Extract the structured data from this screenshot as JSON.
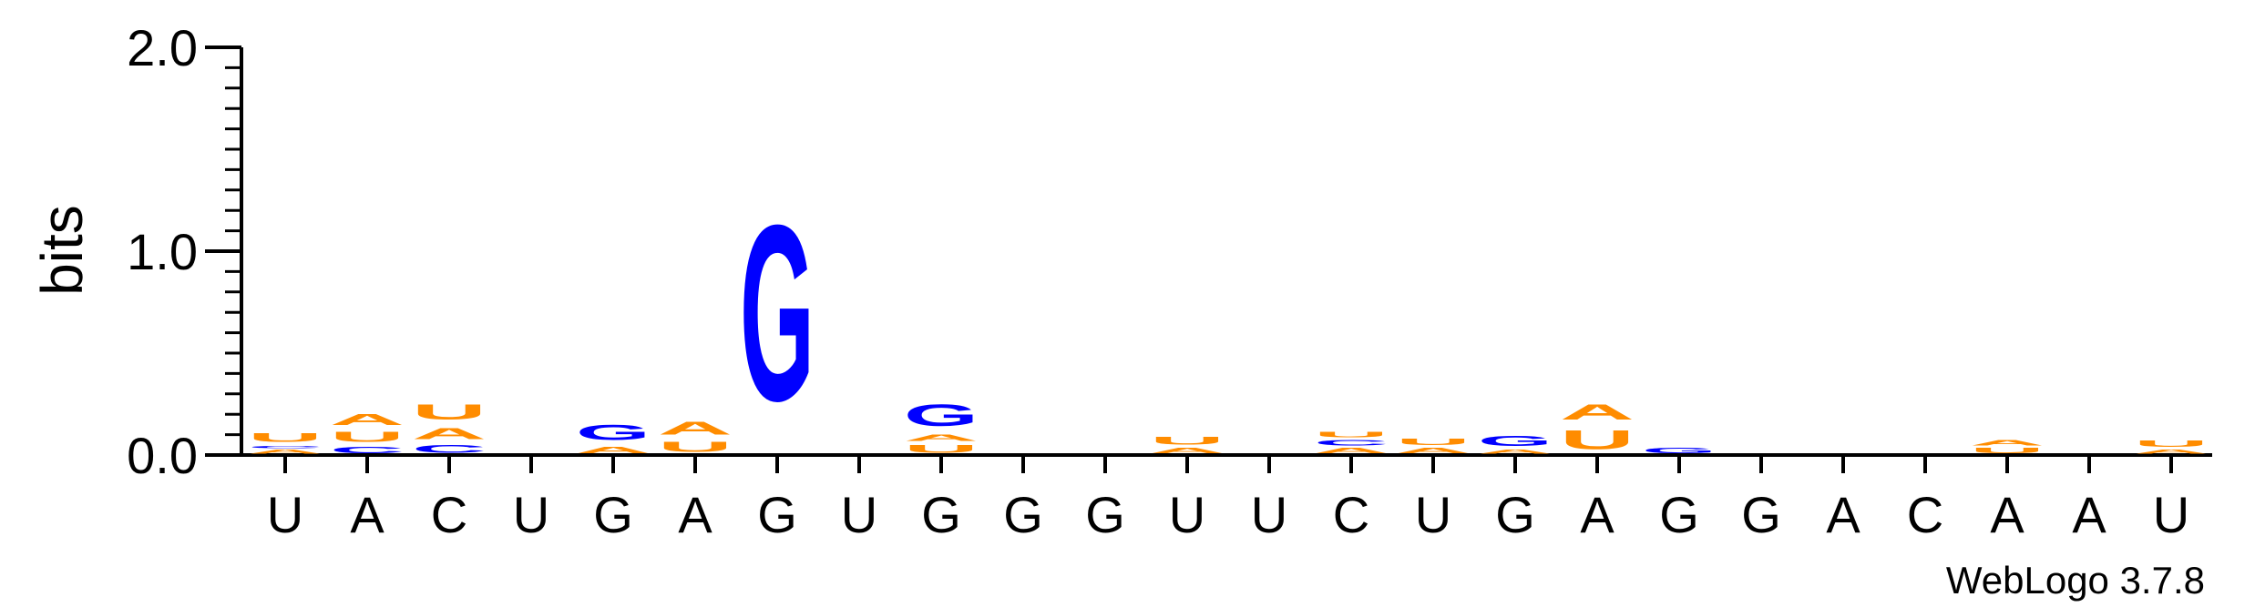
{
  "chart_data": {
    "type": "sequence-logo",
    "ylabel": "bits",
    "ylim": [
      0,
      2.0
    ],
    "yticks": [
      "0.0",
      "1.0",
      "2.0"
    ],
    "credit": "WebLogo 3.7.8",
    "colors": {
      "A": "#ff8c00",
      "U": "#ff8c00",
      "G": "#0000ff",
      "C": "#0000ff"
    },
    "positions": [
      {
        "label": "U",
        "stack": [
          {
            "base": "A",
            "bits": 0.03
          },
          {
            "base": "C",
            "bits": 0.02
          },
          {
            "base": "U",
            "bits": 0.07
          }
        ]
      },
      {
        "label": "A",
        "stack": [
          {
            "base": "C",
            "bits": 0.05
          },
          {
            "base": "U",
            "bits": 0.08
          },
          {
            "base": "A",
            "bits": 0.09
          }
        ]
      },
      {
        "label": "C",
        "stack": [
          {
            "base": "C",
            "bits": 0.06
          },
          {
            "base": "A",
            "bits": 0.09
          },
          {
            "base": "U",
            "bits": 0.12
          }
        ]
      },
      {
        "label": "U",
        "stack": []
      },
      {
        "label": "G",
        "stack": [
          {
            "base": "A",
            "bits": 0.05
          },
          {
            "base": "G",
            "bits": 0.12
          }
        ]
      },
      {
        "label": "A",
        "stack": [
          {
            "base": "U",
            "bits": 0.08
          },
          {
            "base": "A",
            "bits": 0.1
          }
        ]
      },
      {
        "label": "G",
        "stack": [
          {
            "base": "G",
            "bits": 1.38
          }
        ]
      },
      {
        "label": "U",
        "stack": []
      },
      {
        "label": "G",
        "stack": [
          {
            "base": "U",
            "bits": 0.06
          },
          {
            "base": "A",
            "bits": 0.05
          },
          {
            "base": "G",
            "bits": 0.17
          }
        ]
      },
      {
        "label": "G",
        "stack": []
      },
      {
        "label": "G",
        "stack": []
      },
      {
        "label": "U",
        "stack": [
          {
            "base": "A",
            "bits": 0.04
          },
          {
            "base": "U",
            "bits": 0.06
          }
        ]
      },
      {
        "label": "U",
        "stack": []
      },
      {
        "label": "C",
        "stack": [
          {
            "base": "A",
            "bits": 0.04
          },
          {
            "base": "C",
            "bits": 0.04
          },
          {
            "base": "U",
            "bits": 0.04
          }
        ]
      },
      {
        "label": "U",
        "stack": [
          {
            "base": "A",
            "bits": 0.04
          },
          {
            "base": "U",
            "bits": 0.05
          }
        ]
      },
      {
        "label": "G",
        "stack": [
          {
            "base": "A",
            "bits": 0.03
          },
          {
            "base": "G",
            "bits": 0.08
          }
        ]
      },
      {
        "label": "A",
        "stack": [
          {
            "base": "U",
            "bits": 0.15
          },
          {
            "base": "A",
            "bits": 0.12
          }
        ]
      },
      {
        "label": "G",
        "stack": [
          {
            "base": "G",
            "bits": 0.04
          }
        ]
      },
      {
        "label": "G",
        "stack": []
      },
      {
        "label": "A",
        "stack": []
      },
      {
        "label": "C",
        "stack": []
      },
      {
        "label": "A",
        "stack": [
          {
            "base": "U",
            "bits": 0.04
          },
          {
            "base": "A",
            "bits": 0.04
          }
        ]
      },
      {
        "label": "A",
        "stack": []
      },
      {
        "label": "U",
        "stack": [
          {
            "base": "A",
            "bits": 0.03
          },
          {
            "base": "U",
            "bits": 0.05
          }
        ]
      }
    ]
  }
}
